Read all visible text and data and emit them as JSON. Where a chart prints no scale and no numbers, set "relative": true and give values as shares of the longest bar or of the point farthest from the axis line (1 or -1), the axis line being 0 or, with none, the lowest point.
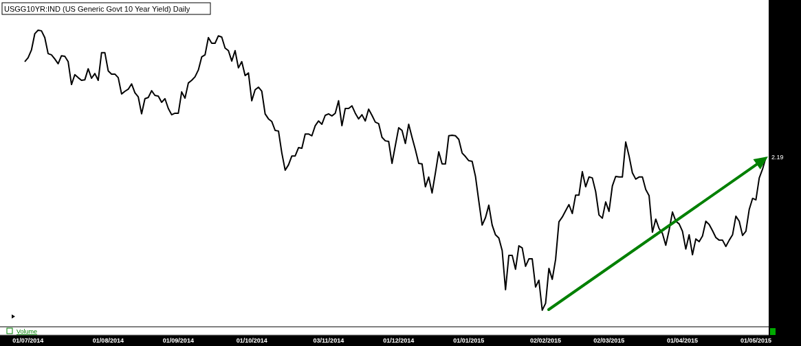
{
  "chart_data": {
    "type": "line",
    "title": "USGG10YR:IND (US Generic Govt 10 Year Yield) Daily",
    "relative": true,
    "categories": [
      null,
      "01/07/2014",
      null,
      null,
      null,
      null,
      null,
      null,
      null,
      null,
      null,
      null,
      null,
      null,
      null,
      null,
      null,
      null,
      null,
      null,
      null,
      null,
      null,
      null,
      null,
      "01/08/2014",
      null,
      null,
      null,
      null,
      null,
      null,
      null,
      null,
      null,
      null,
      null,
      null,
      null,
      null,
      null,
      null,
      null,
      null,
      null,
      null,
      "01/09/2014",
      null,
      null,
      null,
      null,
      null,
      null,
      null,
      null,
      null,
      null,
      null,
      null,
      null,
      null,
      null,
      null,
      null,
      null,
      null,
      null,
      null,
      "01/10/2014",
      null,
      null,
      null,
      null,
      null,
      null,
      null,
      null,
      null,
      null,
      null,
      null,
      null,
      null,
      null,
      null,
      null,
      null,
      null,
      null,
      null,
      null,
      "03/11/2014",
      null,
      null,
      null,
      null,
      null,
      null,
      null,
      null,
      null,
      null,
      null,
      null,
      null,
      null,
      null,
      null,
      null,
      null,
      null,
      null,
      "01/12/2014",
      null,
      null,
      null,
      null,
      null,
      null,
      null,
      null,
      null,
      null,
      null,
      null,
      null,
      null,
      null,
      null,
      null,
      null,
      null,
      null,
      "01/01/2015",
      null,
      null,
      null,
      null,
      null,
      null,
      null,
      null,
      null,
      null,
      null,
      null,
      null,
      null,
      null,
      null,
      null,
      null,
      null,
      null,
      null,
      null,
      "02/02/2015",
      null,
      null,
      null,
      null,
      null,
      null,
      null,
      null,
      null,
      null,
      null,
      null,
      null,
      null,
      null,
      null,
      null,
      null,
      "02/03/2015",
      null,
      null,
      null,
      null,
      null,
      null,
      null,
      null,
      null,
      null,
      null,
      null,
      null,
      null,
      null,
      null,
      null,
      null,
      null,
      null,
      null,
      "01/04/2015",
      null,
      null,
      null,
      null,
      null,
      null,
      null,
      null,
      null,
      null,
      null,
      null,
      null,
      null,
      null,
      null,
      null,
      null,
      null,
      null,
      null,
      "01/05/2015",
      null,
      null,
      null
    ],
    "series": [
      {
        "color": "#000000",
        "values": [
          0.894,
          0.907,
          0.933,
          0.988,
          1,
          0.998,
          0.975,
          0.921,
          0.917,
          0.903,
          0.887,
          0.914,
          0.912,
          0.894,
          0.817,
          0.85,
          0.84,
          0.831,
          0.833,
          0.87,
          0.838,
          0.854,
          0.831,
          0.924,
          0.924,
          0.863,
          0.852,
          0.852,
          0.84,
          0.785,
          0.794,
          0.801,
          0.819,
          0.789,
          0.775,
          0.718,
          0.769,
          0.773,
          0.796,
          0.78,
          0.778,
          0.757,
          0.769,
          0.736,
          0.715,
          0.72,
          0.72,
          0.792,
          0.771,
          0.822,
          0.831,
          0.843,
          0.866,
          0.91,
          0.917,
          0.975,
          0.956,
          0.956,
          0.981,
          0.977,
          0.94,
          0.931,
          0.896,
          0.931,
          0.873,
          0.894,
          0.847,
          0.856,
          0.762,
          0.799,
          0.808,
          0.794,
          0.718,
          0.701,
          0.692,
          0.662,
          0.66,
          0.586,
          0.528,
          0.546,
          0.576,
          0.576,
          0.604,
          0.602,
          0.65,
          0.65,
          0.644,
          0.678,
          0.694,
          0.683,
          0.713,
          0.718,
          0.711,
          0.72,
          0.762,
          0.678,
          0.736,
          0.736,
          0.745,
          0.72,
          0.701,
          0.715,
          0.694,
          0.734,
          0.713,
          0.69,
          0.685,
          0.639,
          0.627,
          0.625,
          0.551,
          0.611,
          0.671,
          0.662,
          0.618,
          0.683,
          0.639,
          0.597,
          0.551,
          0.549,
          0.472,
          0.505,
          0.451,
          0.519,
          0.59,
          0.549,
          0.549,
          0.644,
          0.646,
          0.644,
          0.632,
          0.586,
          0.574,
          0.56,
          0.558,
          0.507,
          0.424,
          0.343,
          0.368,
          0.41,
          0.343,
          0.31,
          0.299,
          0.257,
          0.125,
          0.241,
          0.241,
          0.194,
          0.273,
          0.266,
          0.204,
          0.229,
          0.229,
          0.134,
          0.157,
          0.056,
          0.079,
          0.197,
          0.16,
          0.227,
          0.354,
          0.37,
          0.391,
          0.412,
          0.382,
          0.444,
          0.444,
          0.523,
          0.472,
          0.505,
          0.502,
          0.456,
          0.377,
          0.366,
          0.421,
          0.389,
          0.475,
          0.507,
          0.505,
          0.505,
          0.623,
          0.576,
          0.519,
          0.498,
          0.505,
          0.505,
          0.463,
          0.442,
          0.319,
          0.363,
          0.331,
          0.315,
          0.275,
          0.326,
          0.387,
          0.356,
          0.347,
          0.322,
          0.262,
          0.31,
          0.243,
          0.296,
          0.287,
          0.306,
          0.356,
          0.345,
          0.324,
          0.301,
          0.292,
          0.292,
          0.271,
          0.292,
          0.31,
          0.373,
          0.356,
          0.308,
          0.322,
          0.396,
          0.433,
          0.428,
          0.502,
          0.532,
          0.572
        ]
      }
    ],
    "annotations": [
      "2.19",
      "Volume"
    ]
  }
}
